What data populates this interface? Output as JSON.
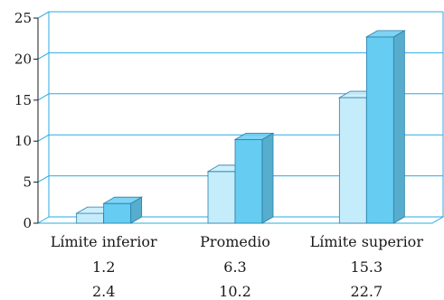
{
  "chart_data": {
    "type": "bar",
    "title": "",
    "xlabel": "",
    "ylabel": "",
    "ylim": [
      0,
      25
    ],
    "yticks": [
      "0",
      "5",
      "10",
      "15",
      "20",
      "25"
    ],
    "grid": true,
    "categories": [
      "Límite inferior",
      "Promedio",
      "Límite superior"
    ],
    "series": [
      {
        "values": [
          1.2,
          6.3,
          15.3
        ],
        "color": "#c5ecfb",
        "labels": [
          "1.2",
          "6.3",
          "15.3"
        ]
      },
      {
        "values": [
          2.4,
          10.2,
          22.7
        ],
        "color": "#66ccf2",
        "labels": [
          "2.4",
          "10.2",
          "22.7"
        ]
      }
    ],
    "series_row_marks": [
      "",
      "1"
    ],
    "axis_color": "#29abe2"
  }
}
